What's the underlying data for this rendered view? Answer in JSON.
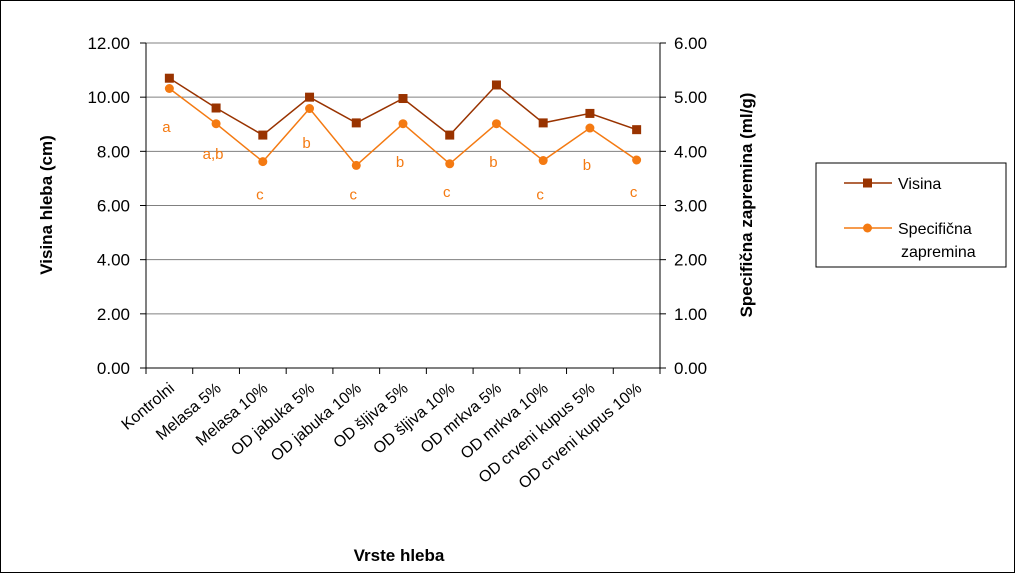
{
  "chart_data": {
    "type": "line",
    "categories": [
      "Kontrolni",
      "Melasa 5%",
      "Melasa 10%",
      "OD jabuka 5%",
      "OD jabuka 10%",
      "OD šljiva 5%",
      "OD šljiva 10%",
      "OD mrkva 5%",
      "OD mrkva 10%",
      "OD crveni kupus 5%",
      "OD crveni kupus 10%"
    ],
    "xlabel": "Vrste hleba",
    "ylabel_left": "Visina hleba (cm)",
    "ylabel_right": "Specifična zapremina (ml/g)",
    "ylim_left": [
      0,
      12
    ],
    "ylim_right": [
      0,
      6
    ],
    "yticks_left": [
      "0.00",
      "2.00",
      "4.00",
      "6.00",
      "8.00",
      "10.00",
      "12.00"
    ],
    "yticks_right": [
      "0.00",
      "1.00",
      "2.00",
      "3.00",
      "4.00",
      "5.00",
      "6.00"
    ],
    "grid": "horizontal",
    "legend_position": "right",
    "series": [
      {
        "name": "Visina",
        "axis": "left",
        "marker": "square",
        "color": "#993300",
        "values": [
          10.7,
          9.6,
          8.6,
          10.0,
          9.05,
          9.95,
          8.6,
          10.45,
          9.05,
          9.4,
          8.8
        ]
      },
      {
        "name": "Specifična zapremina",
        "legend_lines": [
          "Specifična",
          "zapremina"
        ],
        "axis": "right",
        "marker": "circle",
        "color": "#f47a12",
        "values": [
          5.16,
          4.51,
          3.81,
          4.79,
          3.74,
          4.51,
          3.77,
          4.51,
          3.83,
          4.43,
          3.84
        ]
      }
    ],
    "annotations": [
      {
        "index": 0,
        "text": "a",
        "value": 8.9
      },
      {
        "index": 1,
        "text": "a,b",
        "value": 7.9
      },
      {
        "index": 2,
        "text": "c",
        "value": 6.4
      },
      {
        "index": 3,
        "text": "b",
        "value": 8.3
      },
      {
        "index": 4,
        "text": "c",
        "value": 6.4
      },
      {
        "index": 5,
        "text": "b",
        "value": 7.6
      },
      {
        "index": 6,
        "text": "c",
        "value": 6.5
      },
      {
        "index": 7,
        "text": "b",
        "value": 7.6
      },
      {
        "index": 8,
        "text": "c",
        "value": 6.4
      },
      {
        "index": 9,
        "text": "b",
        "value": 7.5
      },
      {
        "index": 10,
        "text": "c",
        "value": 6.5
      }
    ]
  }
}
